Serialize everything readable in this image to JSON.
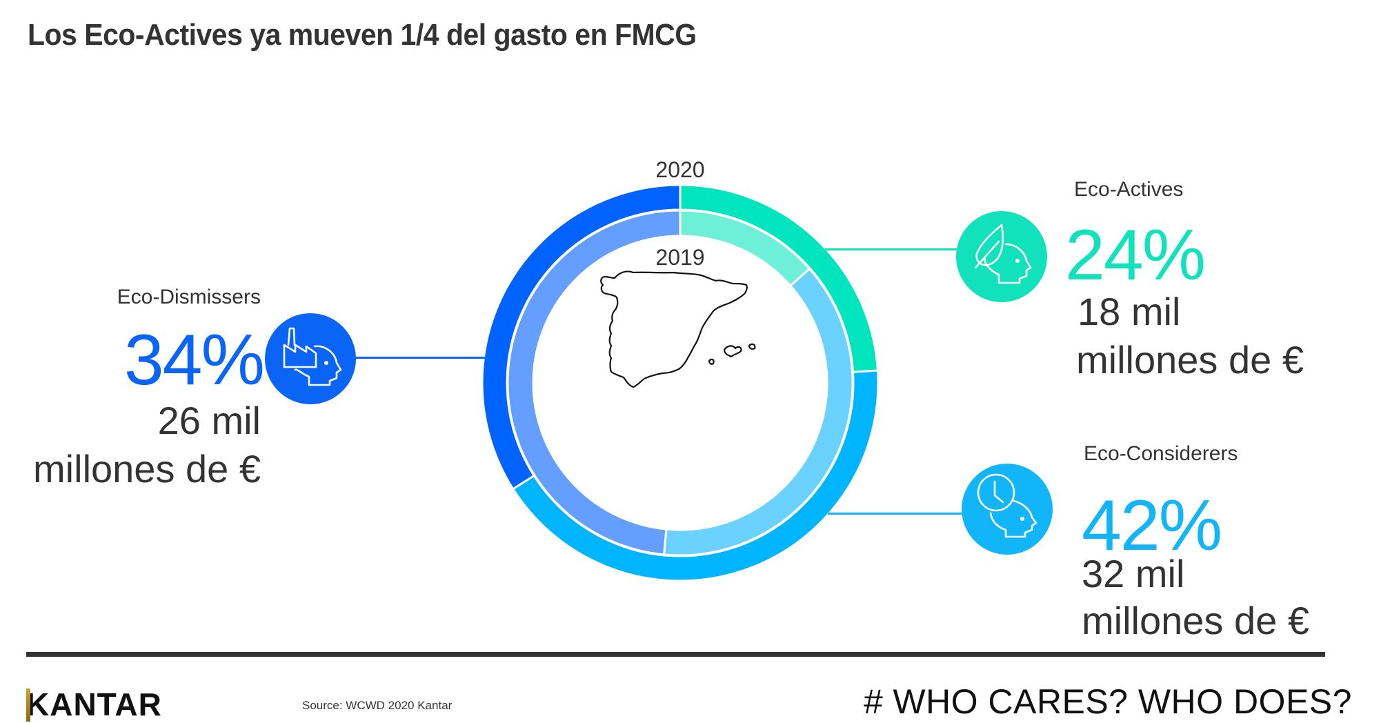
{
  "header": {
    "title": "Los Eco-Actives ya mueven 1/4 del gasto en FMCG"
  },
  "chart": {
    "outer_year_label": "2020",
    "inner_year_label": "2019",
    "center_image": "spain-map-outline"
  },
  "segments": {
    "eco_dismissers": {
      "label": "Eco-Dismissers",
      "percent": "34%",
      "amount_line1": "26 mil",
      "amount_line2": "millones de €",
      "icon": "factory-head-icon",
      "color": "#0a64f5"
    },
    "eco_actives": {
      "label": "Eco-Actives",
      "percent": "24%",
      "amount_line1": "18 mil",
      "amount_line2": "millones de €",
      "icon": "leaf-head-icon",
      "color": "#12e2bb"
    },
    "eco_considerers": {
      "label": "Eco-Considerers",
      "percent": "42%",
      "amount_line1": "32 mil",
      "amount_line2": "millones de €",
      "icon": "clock-head-icon",
      "color": "#12b6f8"
    }
  },
  "footer": {
    "brand": "KANTAR",
    "source": "Source: WCWD 2020 Kantar",
    "tagline": "WHO CARES? WHO DOES?",
    "tagline_prefix": "#"
  },
  "chart_data": {
    "type": "pie",
    "variant": "nested-donut",
    "title": "Los Eco-Actives ya mueven 1/4 del gasto en FMCG",
    "categories": [
      "Eco-Actives",
      "Eco-Considerers",
      "Eco-Dismissers"
    ],
    "series": [
      {
        "name": "2020",
        "ring": "outer",
        "values": [
          24,
          42,
          34
        ],
        "colors": [
          "#00e5bd",
          "#00b5ff",
          "#0062ff"
        ],
        "value_labels": [
          "24%",
          "42%",
          "34%"
        ],
        "spend_labels": [
          "18 mil millones de €",
          "32 mil millones de €",
          "26 mil millones de €"
        ]
      },
      {
        "name": "2019",
        "ring": "inner",
        "values": [
          13.5,
          38,
          48.5
        ],
        "colors": [
          "#6ef0d8",
          "#6bd2ff",
          "#649fff"
        ],
        "estimated": true
      }
    ],
    "start_angle_deg": 0,
    "direction": "clockwise",
    "legend": "callouts with icons",
    "source": "Source: WCWD 2020 Kantar"
  }
}
